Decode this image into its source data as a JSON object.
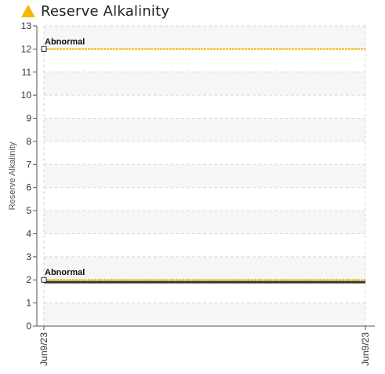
{
  "header": {
    "title": "Reserve Alkalinity",
    "icon": "warning-triangle-icon",
    "icon_color": "#F5B800"
  },
  "chart_data": {
    "type": "line",
    "ylabel": "Reserve Alkalinity",
    "xlabel": "",
    "ylim": [
      0,
      13
    ],
    "yticks": [
      0,
      1,
      2,
      3,
      4,
      5,
      6,
      7,
      8,
      9,
      10,
      11,
      12,
      13
    ],
    "x_ticks": [
      "Jun9/23",
      "Jun9/23"
    ],
    "grid": true,
    "series": [
      {
        "values": [
          1.9,
          1.9
        ],
        "color": "#333333"
      }
    ],
    "reference_lines": [
      {
        "label": "Abnormal",
        "value": 12,
        "color": "#F5B800"
      },
      {
        "label": "Abnormal",
        "value": 2,
        "color": "#F5B800"
      }
    ]
  }
}
